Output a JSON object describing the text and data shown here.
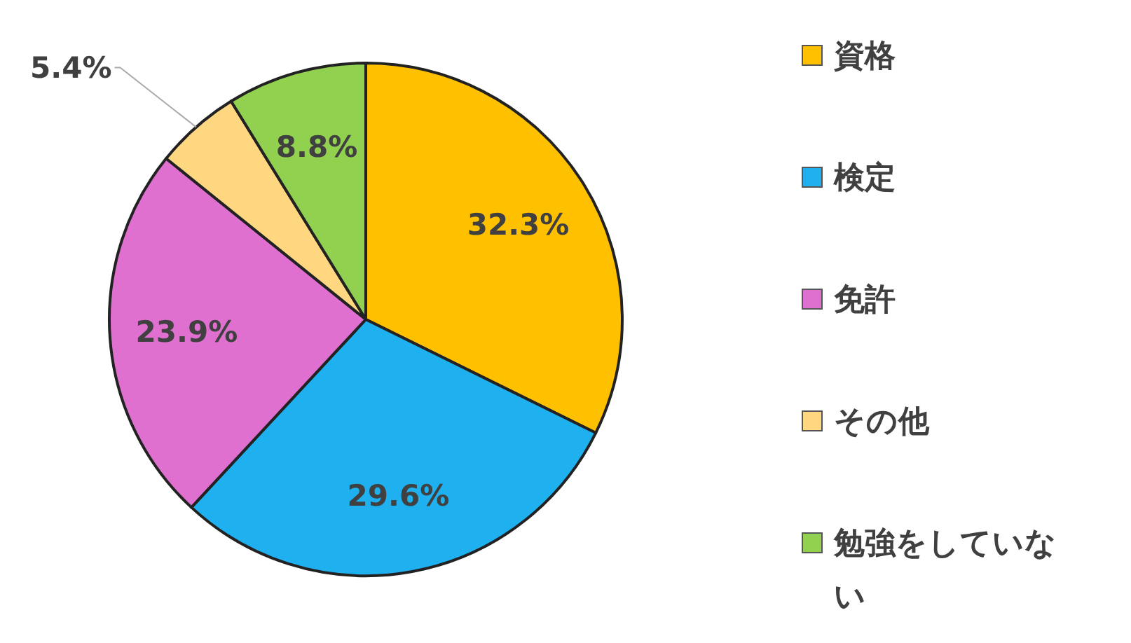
{
  "chart_data": {
    "type": "pie",
    "categories": [
      "資格",
      "検定",
      "免許",
      "その他",
      "勉強をしていない"
    ],
    "values": [
      32.3,
      29.6,
      23.9,
      5.4,
      8.8
    ],
    "value_labels": [
      "32.3%",
      "29.6%",
      "23.9%",
      "5.4%",
      "8.8%"
    ],
    "colors": [
      "#ffc000",
      "#1fb0f0",
      "#e070d0",
      "#ffd780",
      "#92d050"
    ],
    "legend": "right"
  }
}
